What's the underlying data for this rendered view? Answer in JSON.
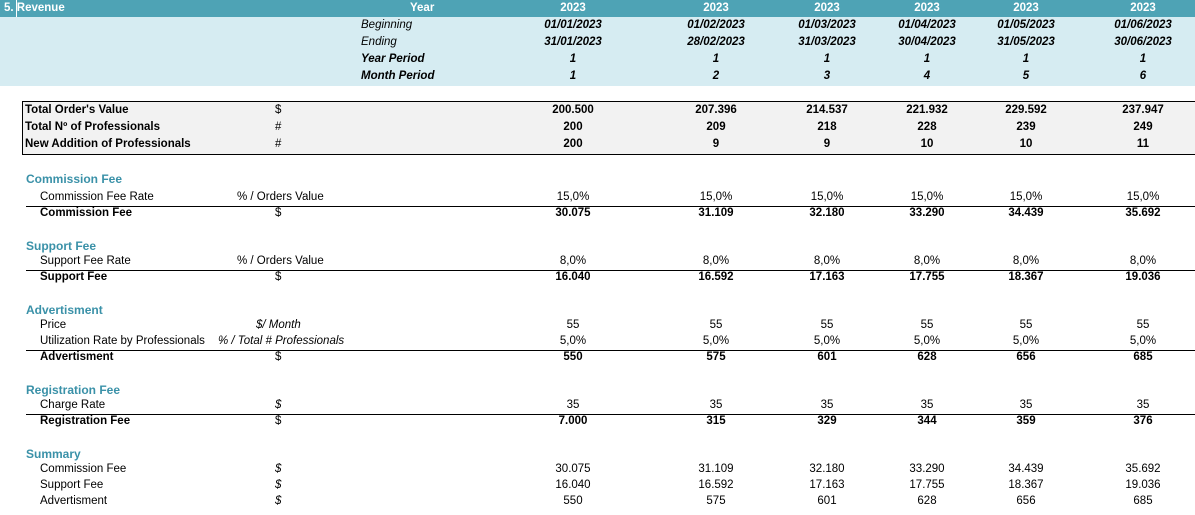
{
  "header": {
    "section_title": "5.  Revenue",
    "year_label": "Year",
    "beginning_label": "Beginning",
    "ending_label": "Ending",
    "year_period_label": "Year Period",
    "month_period_label": "Month Period",
    "years": [
      "2023",
      "2023",
      "2023",
      "2023",
      "2023",
      "2023"
    ],
    "beginning": [
      "01/01/2023",
      "01/02/2023",
      "01/03/2023",
      "01/04/2023",
      "01/05/2023",
      "01/06/2023"
    ],
    "ending": [
      "31/01/2023",
      "28/02/2023",
      "31/03/2023",
      "30/04/2023",
      "31/05/2023",
      "30/06/2023"
    ],
    "year_period": [
      "1",
      "1",
      "1",
      "1",
      "1",
      "1"
    ],
    "month_period": [
      "1",
      "2",
      "3",
      "4",
      "5",
      "6"
    ]
  },
  "totals": {
    "rows": [
      {
        "label": "Total Order's Value",
        "unit": "$",
        "values": [
          "200.500",
          "207.396",
          "214.537",
          "221.932",
          "229.592",
          "237.947"
        ]
      },
      {
        "label": "Total Nº of Professionals",
        "unit": "#",
        "values": [
          "200",
          "209",
          "218",
          "228",
          "239",
          "249"
        ]
      },
      {
        "label": "New Addition of Professionals",
        "unit": "#",
        "values": [
          "200",
          "9",
          "9",
          "10",
          "10",
          "11"
        ]
      }
    ]
  },
  "commission": {
    "title": "Commission Fee",
    "rate_label": "Commission Fee Rate",
    "rate_unit": "% / Orders Value",
    "rate_values": [
      "15,0%",
      "15,0%",
      "15,0%",
      "15,0%",
      "15,0%",
      "15,0%"
    ],
    "total_label": "Commission Fee",
    "total_unit": "$",
    "total_values": [
      "30.075",
      "31.109",
      "32.180",
      "33.290",
      "34.439",
      "35.692"
    ]
  },
  "support": {
    "title": "Support Fee",
    "rate_label": "Support Fee Rate",
    "rate_unit": "% / Orders Value",
    "rate_values": [
      "8,0%",
      "8,0%",
      "8,0%",
      "8,0%",
      "8,0%",
      "8,0%"
    ],
    "total_label": "Support Fee",
    "total_unit": "$",
    "total_values": [
      "16.040",
      "16.592",
      "17.163",
      "17.755",
      "18.367",
      "19.036"
    ]
  },
  "advertisment": {
    "title": "Advertisment",
    "price_label": "Price",
    "price_unit": "$/ Month",
    "price_values": [
      "55",
      "55",
      "55",
      "55",
      "55",
      "55"
    ],
    "util_label": "Utilization Rate by Professionals",
    "util_unit": "% / Total # Professionals",
    "util_values": [
      "5,0%",
      "5,0%",
      "5,0%",
      "5,0%",
      "5,0%",
      "5,0%"
    ],
    "total_label": "Advertisment",
    "total_unit": "$",
    "total_values": [
      "550",
      "575",
      "601",
      "628",
      "656",
      "685"
    ]
  },
  "registration": {
    "title": "Registration Fee",
    "rate_label": "Charge Rate",
    "rate_unit": "$",
    "rate_values": [
      "35",
      "35",
      "35",
      "35",
      "35",
      "35"
    ],
    "total_label": "Registration Fee",
    "total_unit": "$",
    "total_values": [
      "7.000",
      "315",
      "329",
      "344",
      "359",
      "376"
    ]
  },
  "summary": {
    "title": "Summary",
    "rows": [
      {
        "label": "Commission Fee",
        "unit": "$",
        "values": [
          "30.075",
          "31.109",
          "32.180",
          "33.290",
          "34.439",
          "35.692"
        ]
      },
      {
        "label": "Support Fee",
        "unit": "$",
        "values": [
          "16.040",
          "16.592",
          "17.163",
          "17.755",
          "18.367",
          "19.036"
        ]
      },
      {
        "label": "Advertisment",
        "unit": "$",
        "values": [
          "550",
          "575",
          "601",
          "628",
          "656",
          "685"
        ]
      }
    ]
  }
}
